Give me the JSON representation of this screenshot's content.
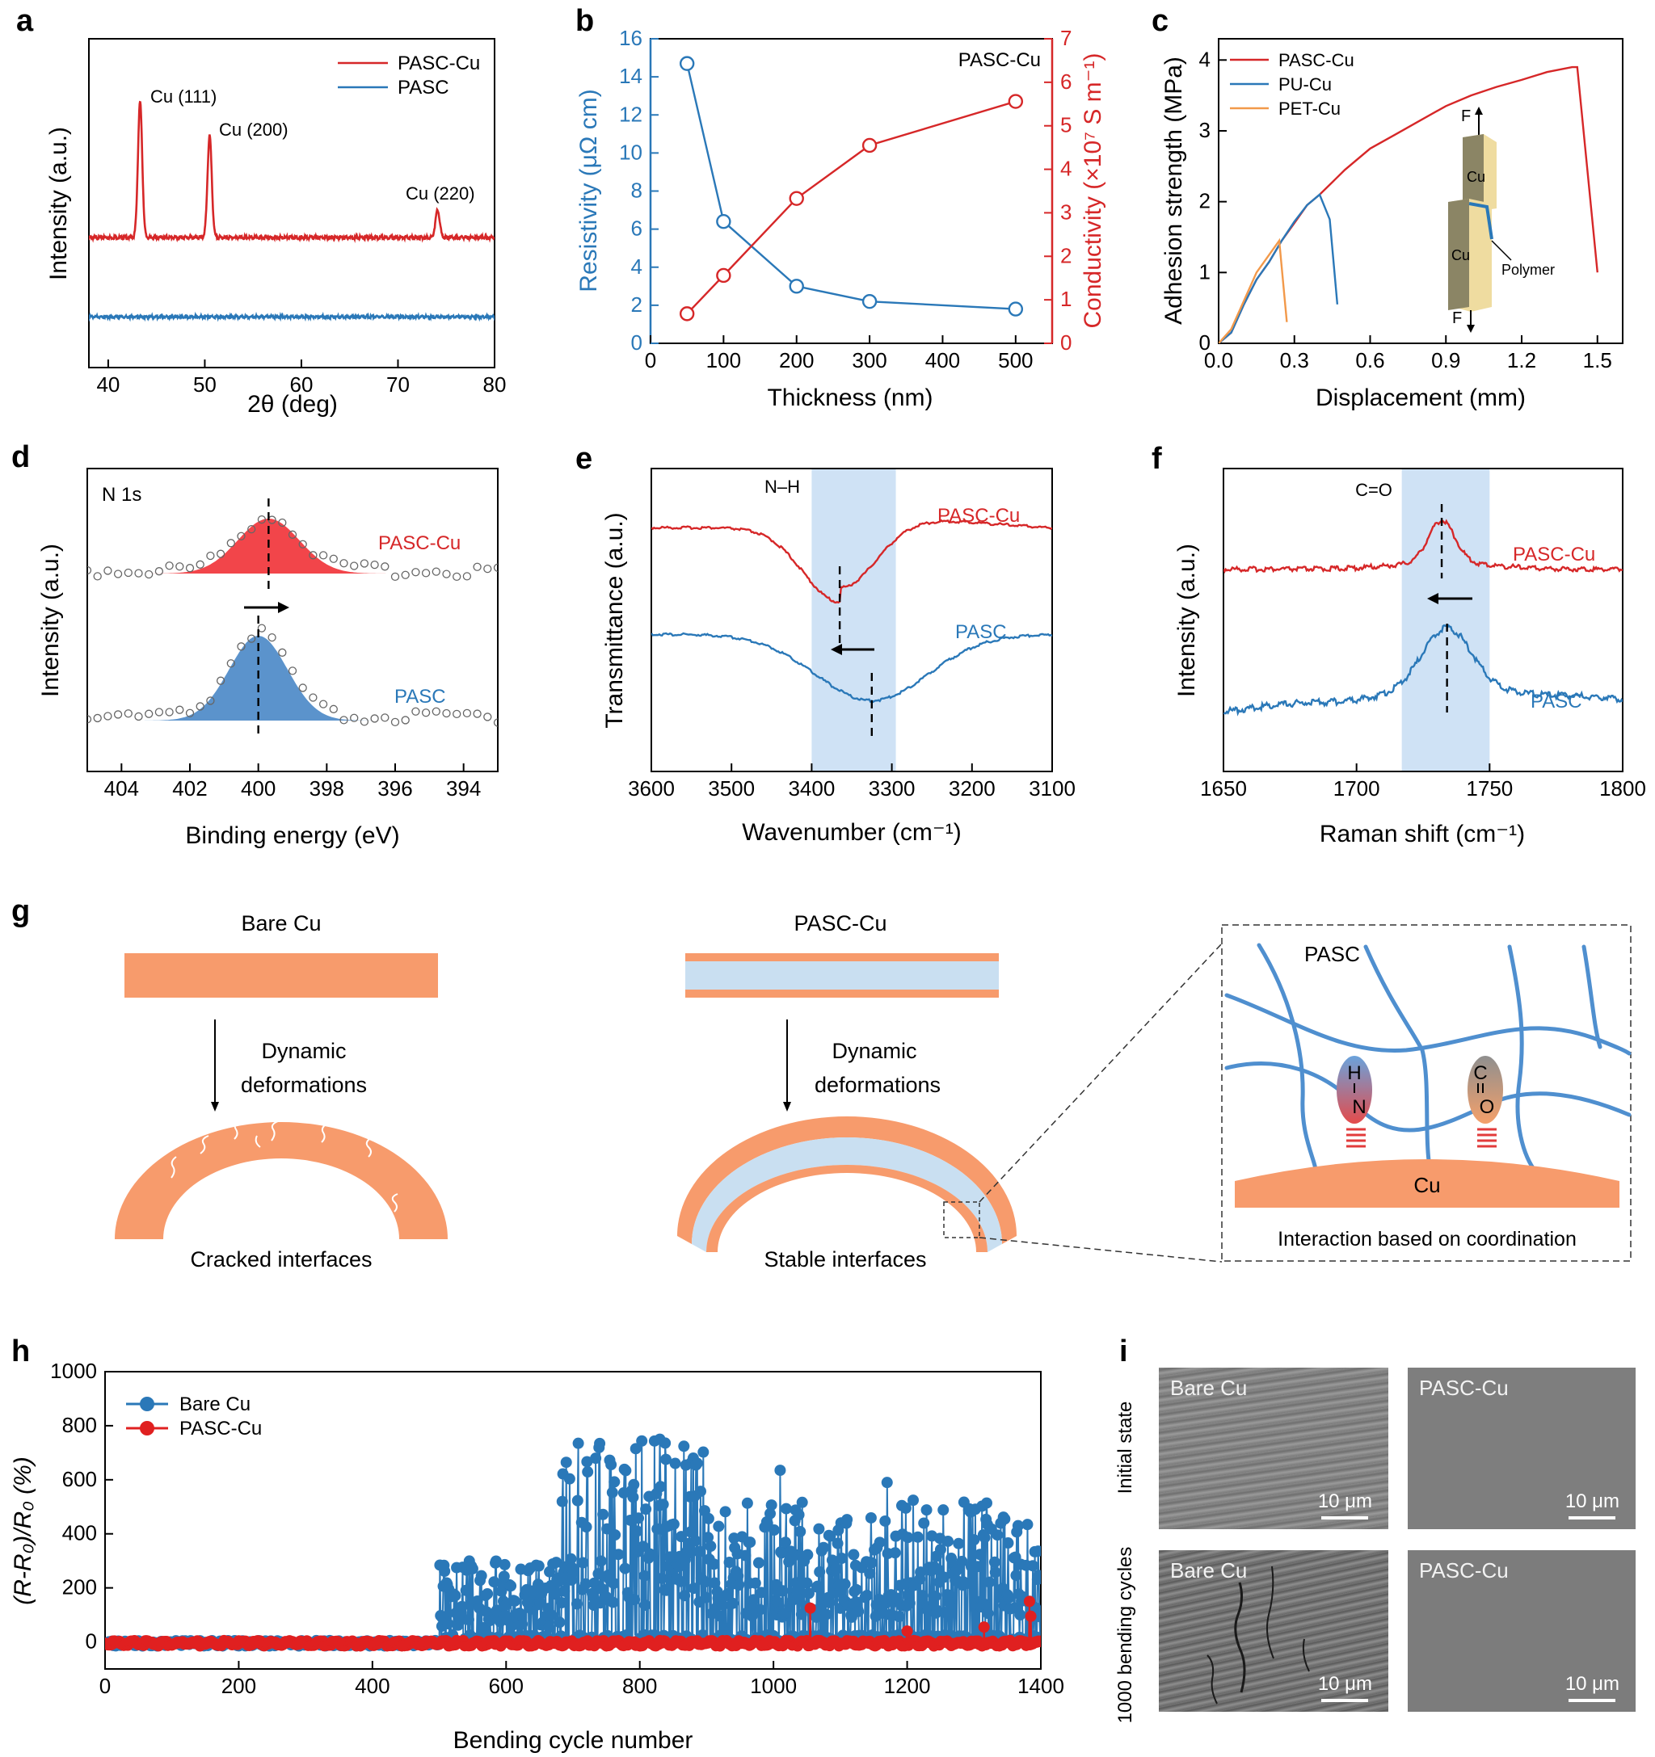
{
  "panels": {
    "a": "a",
    "b": "b",
    "c": "c",
    "d": "d",
    "e": "e",
    "f": "f",
    "g": "g",
    "h": "h",
    "i": "i"
  },
  "colors": {
    "red": "#d62728",
    "blue": "#2a78b8",
    "orange": "#f2994a",
    "cu_fill": "#f79b6c",
    "polymer_fill": "#c9dff1",
    "band": "#cfe2f5"
  },
  "chart_data": [
    {
      "id": "a",
      "type": "line",
      "xlabel": "2θ (deg)",
      "ylabel": "Intensity (a.u.)",
      "xlim": [
        38,
        80
      ],
      "xticks": [
        40,
        50,
        60,
        70,
        80
      ],
      "legend": [
        "PASC-Cu",
        "PASC"
      ],
      "legend_position": "top-right",
      "peaks": [
        {
          "x": 43.3,
          "label": "Cu (111)"
        },
        {
          "x": 50.5,
          "label": "Cu (200)"
        },
        {
          "x": 74.1,
          "label": "Cu (220)"
        }
      ],
      "series": [
        {
          "name": "PASC-Cu",
          "peaks_2theta": [
            43.3,
            50.5,
            74.1
          ],
          "relative_heights": [
            1.0,
            0.75,
            0.2
          ]
        },
        {
          "name": "PASC",
          "flat": true
        }
      ]
    },
    {
      "id": "b",
      "type": "line",
      "title": "PASC-Cu",
      "xlabel": "Thickness (nm)",
      "ylabel": "Resistivity (μΩ cm)",
      "y2label": "Conductivity (×10⁷ S m⁻¹)",
      "xlim": [
        0,
        550
      ],
      "ylim": [
        0,
        16
      ],
      "y2lim": [
        0,
        7
      ],
      "xticks": [
        0,
        100,
        200,
        300,
        400,
        500
      ],
      "yticks": [
        0,
        2,
        4,
        6,
        8,
        10,
        12,
        14,
        16
      ],
      "y2ticks": [
        0,
        1,
        2,
        3,
        4,
        5,
        6,
        7
      ],
      "x": [
        50,
        100,
        200,
        300,
        500
      ],
      "series": [
        {
          "name": "Resistivity",
          "axis": "left",
          "values": [
            14.7,
            6.4,
            3.0,
            2.2,
            1.8
          ]
        },
        {
          "name": "Conductivity",
          "axis": "right",
          "values": [
            0.68,
            1.56,
            3.33,
            4.55,
            5.56
          ]
        }
      ]
    },
    {
      "id": "c",
      "type": "line",
      "xlabel": "Displacement (mm)",
      "ylabel": "Adhesion strength (MPa)",
      "xlim": [
        0,
        1.6
      ],
      "ylim": [
        0,
        4.3
      ],
      "xticks": [
        0.0,
        0.3,
        0.6,
        0.9,
        1.2,
        1.5
      ],
      "yticks": [
        0,
        1,
        2,
        3,
        4
      ],
      "legend_position": "top-left",
      "inset": {
        "top_label": "Cu",
        "bottom_label": "Cu",
        "polymer_label": "Polymer",
        "force_label": "F"
      },
      "series": [
        {
          "name": "PASC-Cu",
          "points": [
            [
              0,
              0
            ],
            [
              0.05,
              0.15
            ],
            [
              0.1,
              0.55
            ],
            [
              0.15,
              0.9
            ],
            [
              0.2,
              1.15
            ],
            [
              0.25,
              1.45
            ],
            [
              0.3,
              1.7
            ],
            [
              0.35,
              1.95
            ],
            [
              0.4,
              2.1
            ],
            [
              0.5,
              2.45
            ],
            [
              0.6,
              2.75
            ],
            [
              0.7,
              2.95
            ],
            [
              0.8,
              3.15
            ],
            [
              0.9,
              3.35
            ],
            [
              1.0,
              3.5
            ],
            [
              1.1,
              3.62
            ],
            [
              1.2,
              3.72
            ],
            [
              1.3,
              3.83
            ],
            [
              1.4,
              3.9
            ],
            [
              1.42,
              3.9
            ],
            [
              1.5,
              1.0
            ]
          ]
        },
        {
          "name": "PU-Cu",
          "points": [
            [
              0,
              0
            ],
            [
              0.05,
              0.15
            ],
            [
              0.1,
              0.55
            ],
            [
              0.15,
              0.9
            ],
            [
              0.2,
              1.15
            ],
            [
              0.25,
              1.45
            ],
            [
              0.3,
              1.72
            ],
            [
              0.35,
              1.95
            ],
            [
              0.4,
              2.1
            ],
            [
              0.44,
              1.75
            ],
            [
              0.47,
              0.55
            ]
          ]
        },
        {
          "name": "PET-Cu",
          "points": [
            [
              0,
              0
            ],
            [
              0.05,
              0.2
            ],
            [
              0.1,
              0.6
            ],
            [
              0.15,
              1.0
            ],
            [
              0.2,
              1.25
            ],
            [
              0.24,
              1.45
            ],
            [
              0.27,
              0.3
            ]
          ]
        }
      ]
    },
    {
      "id": "d",
      "type": "scatter",
      "title": "N 1s",
      "xlabel": "Binding energy (eV)",
      "ylabel": "Intensity (a.u.)",
      "xlim": [
        405,
        393
      ],
      "xticks": [
        404,
        402,
        400,
        398,
        396,
        394
      ],
      "series": [
        {
          "name": "PASC-Cu",
          "peak": 399.7
        },
        {
          "name": "PASC",
          "peak": 400.0
        }
      ]
    },
    {
      "id": "e",
      "type": "line",
      "xlabel": "Wavenumber (cm⁻¹)",
      "ylabel": "Transmittance (a.u.)",
      "xlim": [
        3600,
        3100
      ],
      "xticks": [
        3600,
        3500,
        3400,
        3300,
        3200,
        3100
      ],
      "band": {
        "from": 3400,
        "to": 3295,
        "label": "N–H"
      },
      "series": [
        {
          "name": "PASC-Cu",
          "min": 3365
        },
        {
          "name": "PASC",
          "min": 3325
        }
      ]
    },
    {
      "id": "f",
      "type": "line",
      "xlabel": "Raman shift (cm⁻¹)",
      "ylabel": "Intensity (a.u.)",
      "xlim": [
        1650,
        1800
      ],
      "xticks": [
        1650,
        1700,
        1750,
        1800
      ],
      "band": {
        "from": 1717,
        "to": 1750,
        "label": "C=O"
      },
      "series": [
        {
          "name": "PASC-Cu",
          "peak": 1732
        },
        {
          "name": "PASC",
          "peak": 1734
        }
      ]
    },
    {
      "id": "h",
      "type": "scatter",
      "xlabel": "Bending cycle number",
      "ylabel": "(R-R₀)/R₀ (%)",
      "xlim": [
        0,
        1400
      ],
      "ylim": [
        -100,
        1000
      ],
      "xticks": [
        0,
        200,
        400,
        600,
        800,
        1000,
        1200,
        1400
      ],
      "yticks": [
        0,
        200,
        400,
        600,
        800,
        1000
      ],
      "legend_position": "top-left",
      "series": [
        {
          "name": "Bare Cu",
          "segments": [
            {
              "from": 0,
              "to": 500,
              "level": 0
            },
            {
              "from": 500,
              "to": 1400,
              "max": 750
            }
          ]
        },
        {
          "name": "PASC-Cu",
          "level": 0,
          "max": 150
        }
      ]
    }
  ],
  "schematic": {
    "bare_title": "Bare Cu",
    "pasc_title": "PASC-Cu",
    "dyn1": "Dynamic",
    "dyn2": "deformations",
    "cracked": "Cracked interfaces",
    "stable": "Stable interfaces",
    "inset_pasc": "PASC",
    "inset_cu": "Cu",
    "inset_caption": "Interaction based on coordination",
    "h_label": "H",
    "n_label": "N",
    "c_label": "C",
    "o_label": "O"
  },
  "sem": {
    "row1": "Initial state",
    "row2": "1000 bending cycles",
    "bare": "Bare Cu",
    "pasc": "PASC-Cu",
    "scale": "10 μm"
  }
}
